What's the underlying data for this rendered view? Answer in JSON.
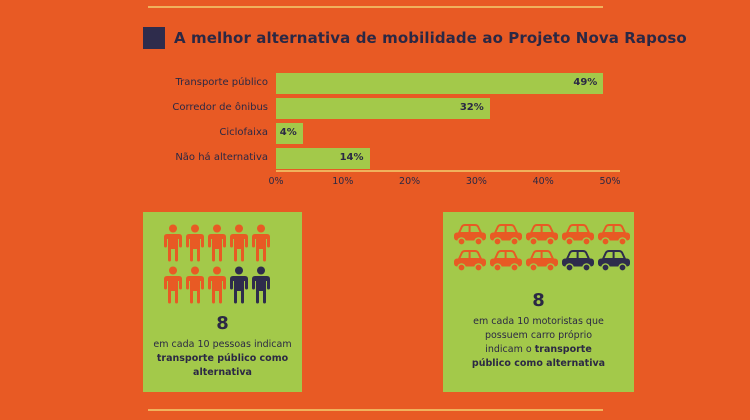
{
  "chart_data": {
    "type": "bar",
    "orientation": "horizontal",
    "title": "A melhor alternativa de mobilidade ao Projeto Nova Raposo",
    "categories": [
      "Transporte público",
      "Corredor de ônibus",
      "Ciclofaixa",
      "Não há alternativa"
    ],
    "values": [
      49,
      32,
      4,
      14
    ],
    "value_labels": [
      "49%",
      "32%",
      "4%",
      "14%"
    ],
    "x_ticks": [
      "0%",
      "10%",
      "20%",
      "30%",
      "40%",
      "50%"
    ],
    "xlim": [
      0,
      50
    ],
    "grid": false,
    "colors": {
      "bar": "#a3c94a",
      "background": "#e85a24",
      "text": "#2b2844"
    }
  },
  "people_card": {
    "number": "8",
    "text_line1": "em cada 10 pessoas indicam",
    "text_bold1": "transporte público como",
    "text_bold2": "alternativa",
    "icon": "person-icon",
    "highlighted": 8,
    "total": 10,
    "colors": {
      "highlight": "#e85a24",
      "other": "#2e2c4c"
    }
  },
  "cars_card": {
    "number": "8",
    "text_line1": "em cada 10 motoristas que",
    "text_line2": "possuem carro próprio",
    "text_line3_prefix": "indicam o",
    "text_bold1": "transporte",
    "text_bold2": "público como alternativa",
    "icon": "car-icon",
    "highlighted": 8,
    "total": 10,
    "colors": {
      "highlight": "#e85a24",
      "other": "#2e2c4c"
    }
  }
}
